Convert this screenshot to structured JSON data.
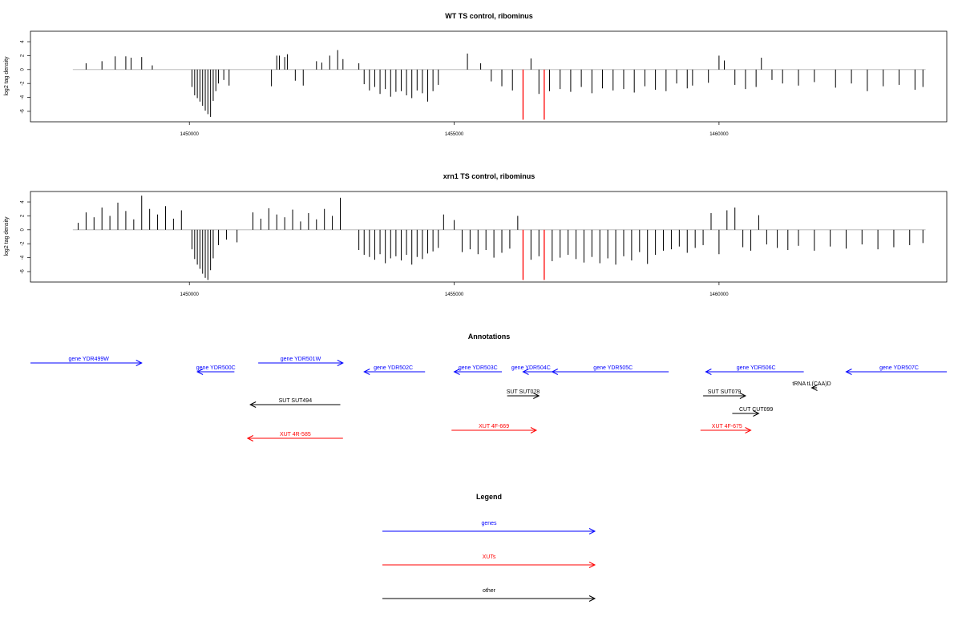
{
  "panels": [
    {
      "title": "WT TS control, ribominus",
      "ylabel": "log2 tag density",
      "xlim": [
        1447000,
        1464300
      ],
      "ylim": [
        -7.5,
        5.5
      ],
      "yticks": [
        4,
        2,
        0,
        -2,
        -4,
        -6
      ],
      "xticks": [
        1450000,
        1455000,
        1460000
      ],
      "baseline_range": [
        1447800,
        1463900
      ],
      "highlight_positions": [
        1456300,
        1456700
      ],
      "highlight_color": "#ff0000"
    },
    {
      "title": "xrn1 TS control, ribominus",
      "ylabel": "log2 tag density",
      "xlim": [
        1447000,
        1464300
      ],
      "ylim": [
        -7.5,
        5.5
      ],
      "yticks": [
        4,
        2,
        0,
        -2,
        -4,
        -6
      ],
      "xticks": [
        1450000,
        1455000,
        1460000
      ],
      "baseline_range": [
        1447800,
        1463900
      ],
      "highlight_positions": [
        1456300,
        1456700
      ],
      "highlight_color": "#ff0000"
    }
  ],
  "chart_data": [
    {
      "type": "bar",
      "title": "WT TS control, ribominus",
      "ylabel": "log2 tag density",
      "xlim": [
        1447000,
        1464300
      ],
      "ylim": [
        -7.5,
        5.5
      ],
      "series": [
        {
          "name": "",
          "x": [
            1448050,
            1448350,
            1448600,
            1448800,
            1448900,
            1449100,
            1449300,
            1450050,
            1450100,
            1450150,
            1450200,
            1450250,
            1450300,
            1450350,
            1450400,
            1450450,
            1450500,
            1450550,
            1450650,
            1450750,
            1451550,
            1451650,
            1451700,
            1451800,
            1451850,
            1452000,
            1452150,
            1452400,
            1452500,
            1452650,
            1452800,
            1452900,
            1453200,
            1453300,
            1453400,
            1453500,
            1453600,
            1453700,
            1453800,
            1453900,
            1454000,
            1454100,
            1454200,
            1454300,
            1454400,
            1454500,
            1454600,
            1454700,
            1455250,
            1455500,
            1455700,
            1455900,
            1456100,
            1456450,
            1456600,
            1456800,
            1457000,
            1457200,
            1457400,
            1457600,
            1457800,
            1458000,
            1458200,
            1458400,
            1458600,
            1458800,
            1459000,
            1459200,
            1459400,
            1459500,
            1459800,
            1460000,
            1460100,
            1460300,
            1460500,
            1460700,
            1460800,
            1461000,
            1461200,
            1461500,
            1461800,
            1462200,
            1462500,
            1462800,
            1463100,
            1463400,
            1463700,
            1463850
          ],
          "y": [
            0.9,
            1.2,
            1.9,
            1.9,
            1.7,
            1.8,
            0.6,
            -2.5,
            -3.7,
            -4.1,
            -4.6,
            -5.2,
            -5.9,
            -6.4,
            -6.8,
            -4.5,
            -3.1,
            -2.0,
            -1.5,
            -2.3,
            -2.4,
            2.0,
            2.0,
            1.8,
            2.2,
            -1.6,
            -2.3,
            1.2,
            1.0,
            2.0,
            2.8,
            1.5,
            0.9,
            -2.1,
            -3.0,
            -2.5,
            -3.5,
            -2.8,
            -3.9,
            -3.2,
            -3.1,
            -3.7,
            -4.1,
            -3.0,
            -3.4,
            -4.6,
            -3.1,
            -2.2,
            2.3,
            0.9,
            -1.7,
            -2.4,
            -3.0,
            1.6,
            -3.5,
            -3.1,
            -2.8,
            -3.2,
            -2.5,
            -3.4,
            -2.7,
            -3.0,
            -2.8,
            -3.3,
            -2.4,
            -2.9,
            -3.1,
            -2.0,
            -2.7,
            -2.3,
            -1.9,
            2.0,
            1.3,
            -2.2,
            -2.8,
            -2.5,
            1.7,
            -1.5,
            -2.0,
            -2.3,
            -1.8,
            -2.6,
            -2.0,
            -3.1,
            -2.4,
            -2.2,
            -2.9,
            -2.5
          ]
        }
      ]
    },
    {
      "type": "bar",
      "title": "xrn1 TS control, ribominus",
      "ylabel": "log2 tag density",
      "xlim": [
        1447000,
        1464300
      ],
      "ylim": [
        -7.5,
        5.5
      ],
      "series": [
        {
          "name": "",
          "x": [
            1447900,
            1448050,
            1448200,
            1448350,
            1448500,
            1448650,
            1448800,
            1448950,
            1449100,
            1449250,
            1449400,
            1449550,
            1449700,
            1449850,
            1450050,
            1450100,
            1450150,
            1450200,
            1450250,
            1450300,
            1450350,
            1450400,
            1450450,
            1450550,
            1450700,
            1450900,
            1451200,
            1451350,
            1451500,
            1451650,
            1451800,
            1451950,
            1452100,
            1452250,
            1452400,
            1452550,
            1452700,
            1452850,
            1453200,
            1453300,
            1453400,
            1453500,
            1453600,
            1453700,
            1453800,
            1453900,
            1454000,
            1454100,
            1454200,
            1454300,
            1454400,
            1454500,
            1454600,
            1454700,
            1454800,
            1455000,
            1455150,
            1455300,
            1455450,
            1455600,
            1455750,
            1455900,
            1456050,
            1456200,
            1456450,
            1456600,
            1456850,
            1457000,
            1457150,
            1457300,
            1457450,
            1457600,
            1457750,
            1457900,
            1458050,
            1458200,
            1458350,
            1458500,
            1458650,
            1458800,
            1458950,
            1459100,
            1459250,
            1459400,
            1459550,
            1459700,
            1459850,
            1460000,
            1460150,
            1460300,
            1460450,
            1460600,
            1460750,
            1460900,
            1461100,
            1461300,
            1461500,
            1461800,
            1462100,
            1462400,
            1462700,
            1463000,
            1463300,
            1463600,
            1463850
          ],
          "y": [
            1.0,
            2.5,
            1.8,
            3.2,
            2.0,
            3.9,
            2.7,
            1.5,
            4.9,
            3.0,
            2.2,
            3.4,
            1.6,
            2.8,
            -2.8,
            -4.2,
            -5.0,
            -5.6,
            -6.3,
            -6.9,
            -7.2,
            -5.8,
            -4.1,
            -2.2,
            -1.4,
            -1.8,
            2.5,
            1.6,
            3.1,
            2.2,
            1.8,
            2.9,
            1.2,
            2.4,
            1.5,
            3.0,
            2.0,
            4.6,
            -2.9,
            -3.6,
            -3.9,
            -4.3,
            -3.5,
            -4.8,
            -4.1,
            -3.8,
            -4.4,
            -3.6,
            -5.0,
            -3.9,
            -4.2,
            -3.4,
            -3.1,
            -2.6,
            2.2,
            1.4,
            -3.2,
            -2.8,
            -3.5,
            -2.9,
            -4.0,
            -3.3,
            -2.7,
            2.0,
            -4.3,
            -3.8,
            -4.5,
            -4.0,
            -3.6,
            -4.2,
            -4.7,
            -3.9,
            -4.8,
            -4.1,
            -5.0,
            -3.8,
            -4.4,
            -3.2,
            -4.9,
            -3.6,
            -3.0,
            -2.8,
            -2.4,
            -3.3,
            -2.6,
            -2.2,
            2.4,
            -3.5,
            2.8,
            3.2,
            -2.5,
            -3.0,
            2.1,
            -2.1,
            -2.6,
            -2.9,
            -2.3,
            -3.0,
            -2.4,
            -2.7,
            -2.1,
            -2.8,
            -2.5,
            -2.2,
            -1.9
          ]
        }
      ]
    }
  ],
  "annotations": {
    "title": "Annotations",
    "xlim": [
      1447000,
      1464300
    ],
    "items": [
      {
        "label": "gene YDR499W",
        "color": "#0000ff",
        "start": 1447000,
        "end": 1449100,
        "dir": "right",
        "row": 0,
        "label_pos": 1448100
      },
      {
        "label": "gene YDR500C",
        "color": "#0000ff",
        "start": 1450150,
        "end": 1450850,
        "dir": "left",
        "row": 1,
        "label_pos": 1450500
      },
      {
        "label": "gene YDR501W",
        "color": "#0000ff",
        "start": 1451300,
        "end": 1452900,
        "dir": "right",
        "row": 0,
        "label_pos": 1452100
      },
      {
        "label": "gene YDR502C",
        "color": "#0000ff",
        "start": 1453300,
        "end": 1454450,
        "dir": "left",
        "row": 1,
        "label_pos": 1453850
      },
      {
        "label": "gene YDR503C",
        "color": "#0000ff",
        "start": 1455000,
        "end": 1455900,
        "dir": "left",
        "row": 1,
        "label_pos": 1455450
      },
      {
        "label": "gene YDR504C",
        "color": "#0000ff",
        "start": 1456300,
        "end": 1456850,
        "dir": "left",
        "row": 1,
        "label_pos": 1456450
      },
      {
        "label": "gene YDR505C",
        "color": "#0000ff",
        "start": 1456850,
        "end": 1459050,
        "dir": "left",
        "row": 1,
        "label_pos": 1458000
      },
      {
        "label": "gene YDR506C",
        "color": "#0000ff",
        "start": 1459750,
        "end": 1461600,
        "dir": "left",
        "row": 1,
        "label_pos": 1460700
      },
      {
        "label": "gene YDR507C",
        "color": "#0000ff",
        "start": 1462400,
        "end": 1464300,
        "dir": "left",
        "row": 1,
        "label_pos": 1463400
      },
      {
        "label": "tRNA tL(CAA)D",
        "color": "#000000",
        "start": 1461750,
        "end": 1461850,
        "dir": "left",
        "row": 2,
        "label_pos": 1461750
      },
      {
        "label": "SUT SUT494",
        "color": "#000000",
        "start": 1451150,
        "end": 1452850,
        "dir": "left",
        "row": 3,
        "label_pos": 1452000
      },
      {
        "label": "SUT SUT078",
        "color": "#000000",
        "start": 1456000,
        "end": 1456600,
        "dir": "right",
        "row": 4,
        "label_pos": 1456300
      },
      {
        "label": "SUT SUT079",
        "color": "#000000",
        "start": 1459700,
        "end": 1460500,
        "dir": "right",
        "row": 4,
        "label_pos": 1460100
      },
      {
        "label": "CUT CUT099",
        "color": "#000000",
        "start": 1460250,
        "end": 1460750,
        "dir": "right",
        "row": 5,
        "label_pos": 1460700
      },
      {
        "label": "XUT 4R-585",
        "color": "#ff0000",
        "start": 1451100,
        "end": 1452900,
        "dir": "left",
        "row": 6,
        "label_pos": 1452000
      },
      {
        "label": "XUT 4F-669",
        "color": "#ff0000",
        "start": 1454950,
        "end": 1456550,
        "dir": "right",
        "row": 7,
        "label_pos": 1455750
      },
      {
        "label": "XUT 4F-675",
        "color": "#ff0000",
        "start": 1459650,
        "end": 1460600,
        "dir": "right",
        "row": 7,
        "label_pos": 1460150
      }
    ]
  },
  "legend": {
    "title": "Legend",
    "items": [
      {
        "label": "genes",
        "color": "#0000ff"
      },
      {
        "label": "XUTs",
        "color": "#ff0000"
      },
      {
        "label": "other",
        "color": "#000000"
      }
    ]
  }
}
